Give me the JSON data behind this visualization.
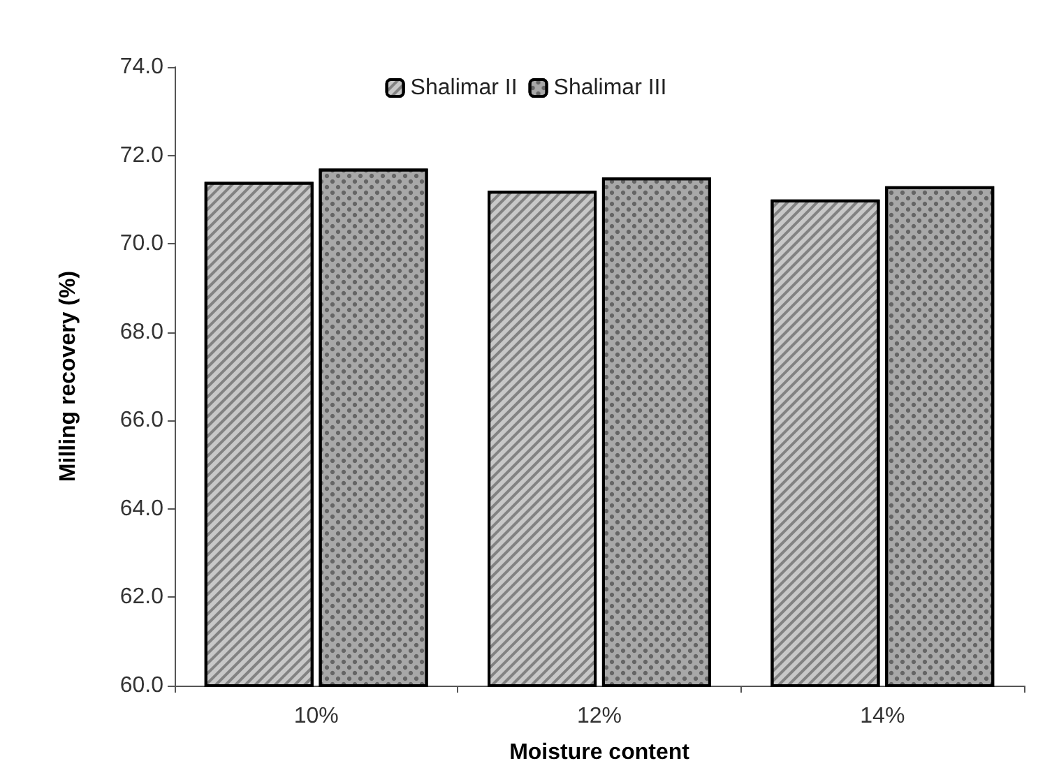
{
  "chart_data": {
    "type": "bar",
    "xlabel": "Moisture content",
    "ylabel": "Milling recovery (%)",
    "categories": [
      "10%",
      "12%",
      "14%"
    ],
    "series": [
      {
        "name": "Shalimar II",
        "color": "#c8c8c8",
        "values": [
          71.4,
          71.2,
          71.0
        ]
      },
      {
        "name": "Shalimar III",
        "color": "#a8a8a8",
        "values": [
          71.7,
          71.5,
          71.3
        ]
      }
    ],
    "ylim": [
      60,
      74
    ],
    "yticks": [
      {
        "value": 60,
        "label": "60.0"
      },
      {
        "value": 62,
        "label": "62.0"
      },
      {
        "value": 64,
        "label": "64.0"
      },
      {
        "value": 66,
        "label": "66.0"
      },
      {
        "value": 68,
        "label": "68.0"
      },
      {
        "value": 70,
        "label": "70.0"
      },
      {
        "value": 72,
        "label": "72.0"
      },
      {
        "value": 74,
        "label": "74.0"
      }
    ],
    "grid": false,
    "legend": "top"
  }
}
